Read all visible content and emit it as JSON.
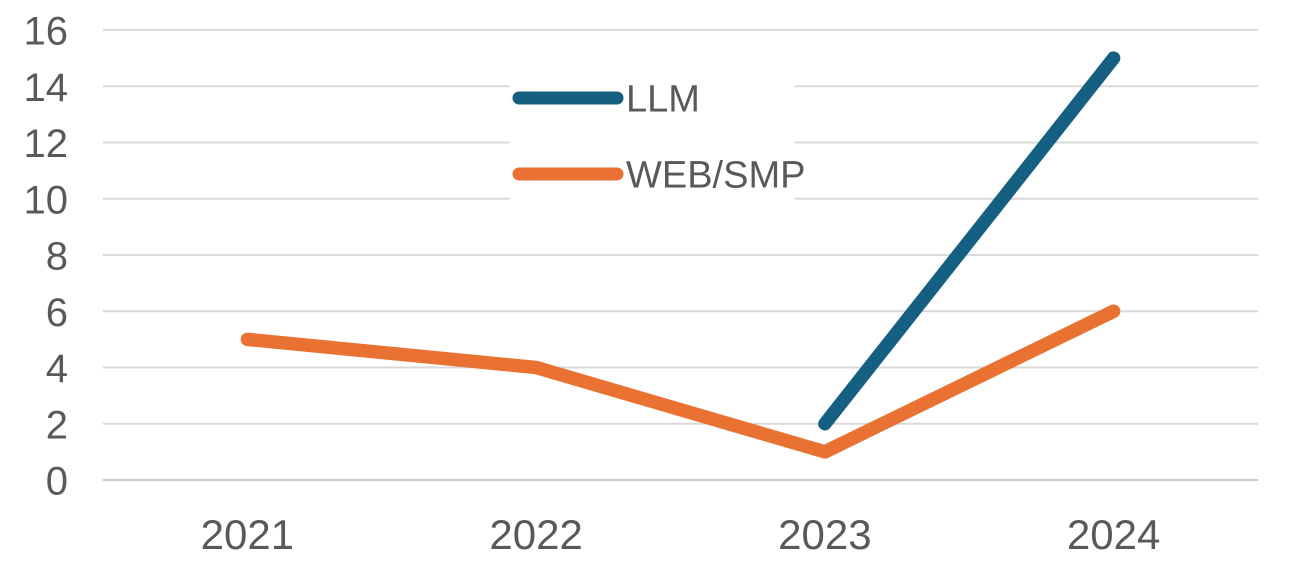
{
  "chart_data": {
    "type": "line",
    "title": "",
    "xlabel": "",
    "ylabel": "",
    "categories": [
      "2021",
      "2022",
      "2023",
      "2024"
    ],
    "series": [
      {
        "name": "LLM",
        "color": "#156082",
        "values": [
          null,
          null,
          2,
          15
        ]
      },
      {
        "name": "WEB/SMP",
        "color": "#E97132",
        "values": [
          5,
          4,
          1,
          6
        ]
      }
    ],
    "y_axis": {
      "min": 0,
      "max": 16,
      "step": 2,
      "tick_labels": [
        "0",
        "2",
        "4",
        "6",
        "8",
        "10",
        "12",
        "14",
        "16"
      ]
    },
    "grid": true,
    "legend": {
      "position": "top-center",
      "orientation": "vertical",
      "entries": [
        "LLM",
        "WEB/SMP"
      ]
    },
    "colors": {
      "gridline": "#D9D9D9",
      "axis_line": "#C9C9C9",
      "tick_text": "#595959",
      "background": "#FFFFFF"
    }
  }
}
